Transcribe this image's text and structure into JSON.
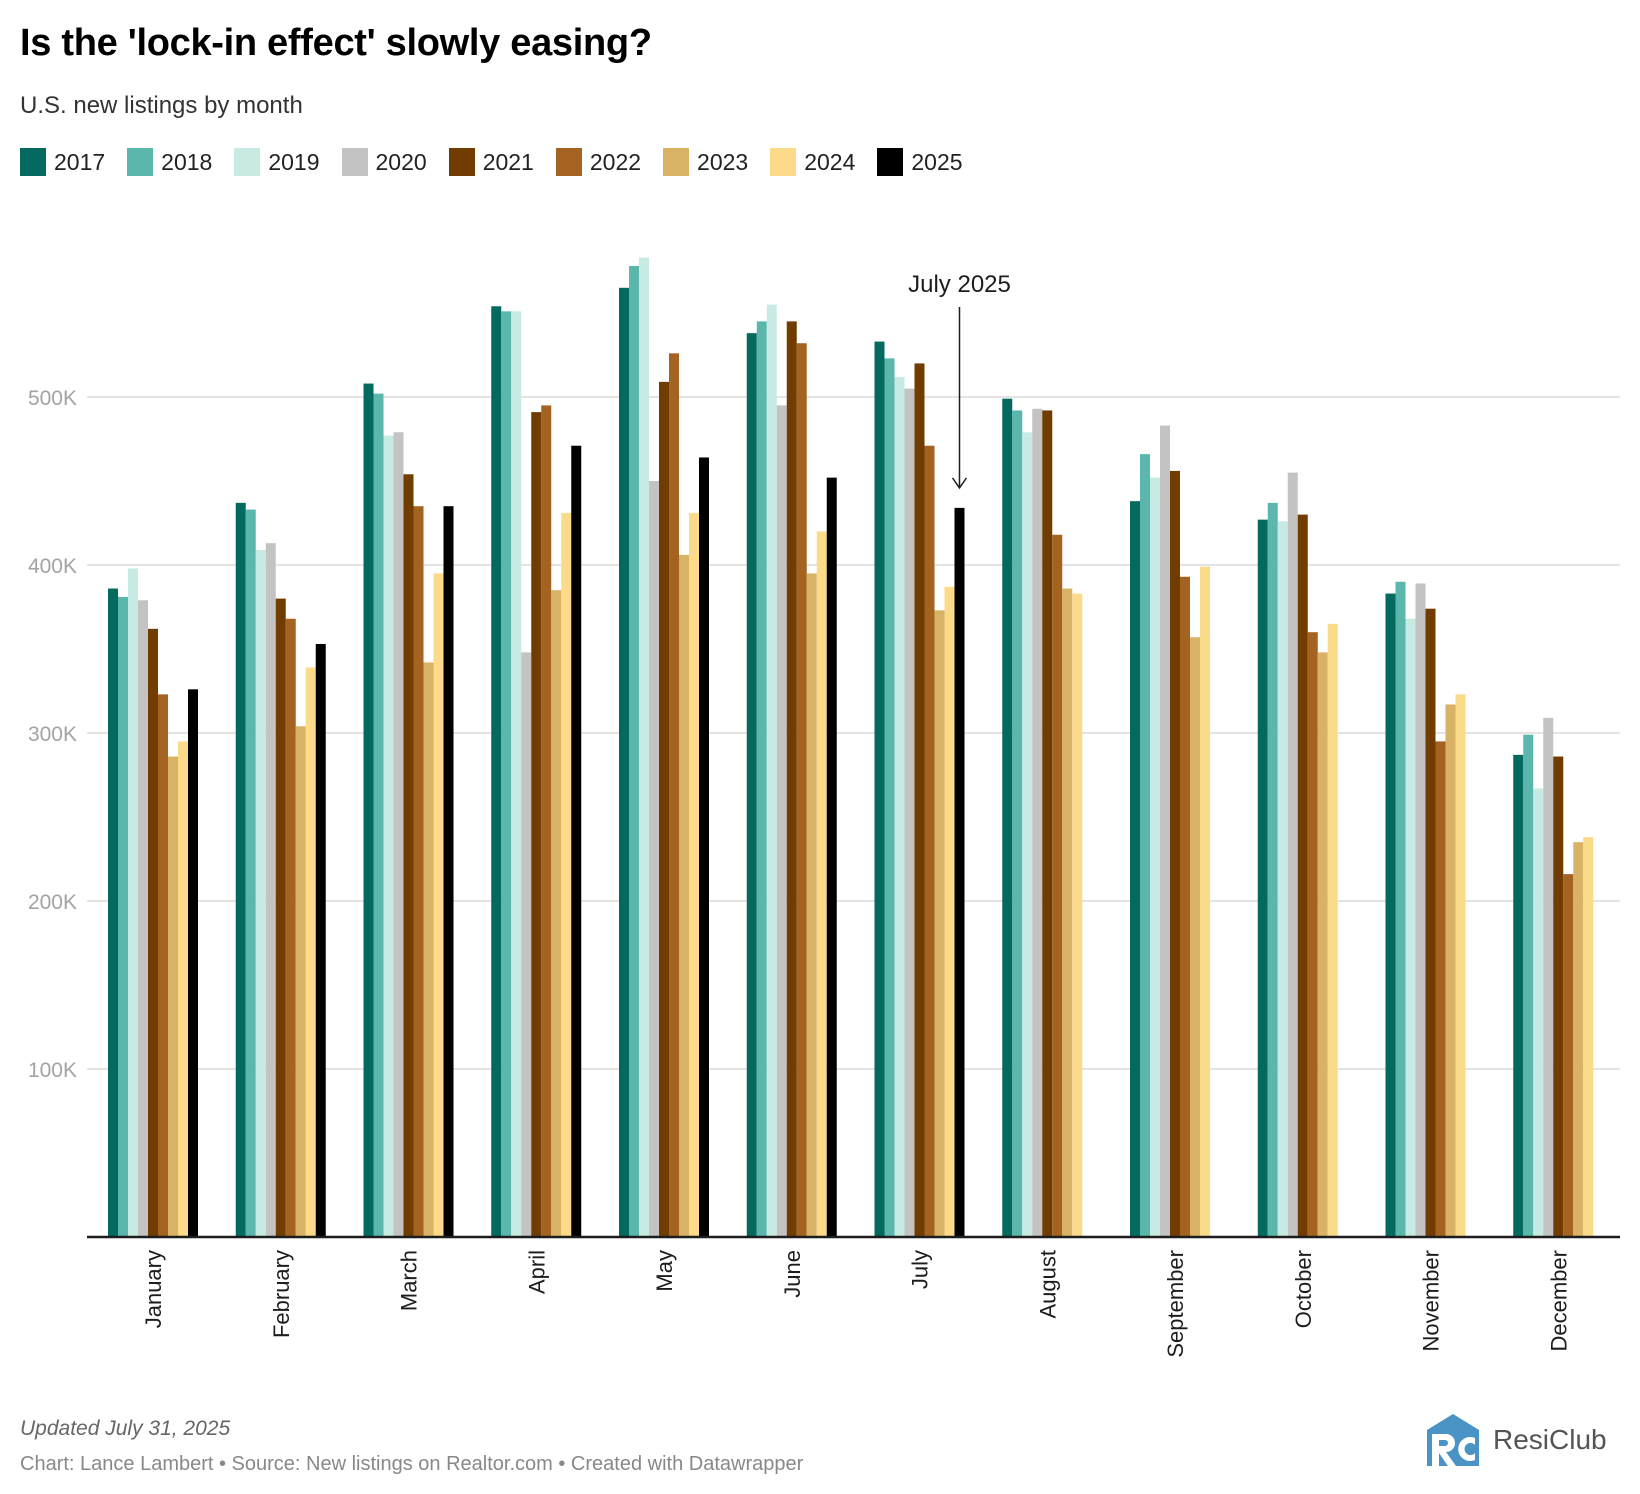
{
  "header": {
    "title": "Is the 'lock-in effect' slowly easing?",
    "subtitle": "U.S. new listings by month"
  },
  "legend": [
    {
      "label": "2017",
      "color": "#04695f"
    },
    {
      "label": "2018",
      "color": "#5bb6ac"
    },
    {
      "label": "2019",
      "color": "#c7eae3"
    },
    {
      "label": "2020",
      "color": "#c3c3c3"
    },
    {
      "label": "2021",
      "color": "#713c00"
    },
    {
      "label": "2022",
      "color": "#a46321"
    },
    {
      "label": "2023",
      "color": "#d8b365"
    },
    {
      "label": "2024",
      "color": "#fbdb8a"
    },
    {
      "label": "2025",
      "color": "#000000"
    }
  ],
  "annotation": {
    "label": "July 2025",
    "target_month": "July",
    "target_series": "2025"
  },
  "footer": {
    "updated": "Updated July 31, 2025",
    "credit": "Chart: Lance Lambert • Source: New listings on Realtor.com • Created with Datawrapper",
    "logo_text": "ResiClub"
  },
  "chart_data": {
    "type": "bar",
    "title": "Is the 'lock-in effect' slowly easing?",
    "subtitle": "U.S. new listings by month",
    "xlabel": "",
    "ylabel": "",
    "ylim": [
      0,
      600000
    ],
    "yticks": [
      100000,
      200000,
      300000,
      400000,
      500000
    ],
    "ytick_labels": [
      "100K",
      "200K",
      "300K",
      "400K",
      "500K"
    ],
    "grid": true,
    "legend_position": "top-left",
    "categories": [
      "January",
      "February",
      "March",
      "April",
      "May",
      "June",
      "July",
      "August",
      "September",
      "October",
      "November",
      "December"
    ],
    "series": [
      {
        "name": "2017",
        "color": "#04695f",
        "values": [
          386000,
          437000,
          508000,
          554000,
          565000,
          538000,
          533000,
          499000,
          438000,
          427000,
          383000,
          287000
        ]
      },
      {
        "name": "2018",
        "color": "#5bb6ac",
        "values": [
          381000,
          433000,
          502000,
          551000,
          578000,
          545000,
          523000,
          492000,
          466000,
          437000,
          390000,
          299000
        ]
      },
      {
        "name": "2019",
        "color": "#c7eae3",
        "values": [
          398000,
          409000,
          477000,
          551000,
          583000,
          555000,
          512000,
          479000,
          452000,
          426000,
          368000,
          267000
        ]
      },
      {
        "name": "2020",
        "color": "#c3c3c3",
        "values": [
          379000,
          413000,
          479000,
          348000,
          450000,
          495000,
          505000,
          493000,
          483000,
          455000,
          389000,
          309000
        ]
      },
      {
        "name": "2021",
        "color": "#713c00",
        "values": [
          362000,
          380000,
          454000,
          491000,
          509000,
          545000,
          520000,
          492000,
          456000,
          430000,
          374000,
          286000
        ]
      },
      {
        "name": "2022",
        "color": "#a46321",
        "values": [
          323000,
          368000,
          435000,
          495000,
          526000,
          532000,
          471000,
          418000,
          393000,
          360000,
          295000,
          216000
        ]
      },
      {
        "name": "2023",
        "color": "#d8b365",
        "values": [
          286000,
          304000,
          342000,
          385000,
          406000,
          395000,
          373000,
          386000,
          357000,
          348000,
          317000,
          235000
        ]
      },
      {
        "name": "2024",
        "color": "#fbdb8a",
        "values": [
          295000,
          339000,
          395000,
          431000,
          431000,
          420000,
          387000,
          383000,
          399000,
          365000,
          323000,
          238000
        ]
      },
      {
        "name": "2025",
        "color": "#000000",
        "values": [
          326000,
          353000,
          435000,
          471000,
          464000,
          452000,
          434000,
          null,
          null,
          null,
          null,
          null
        ]
      }
    ]
  }
}
